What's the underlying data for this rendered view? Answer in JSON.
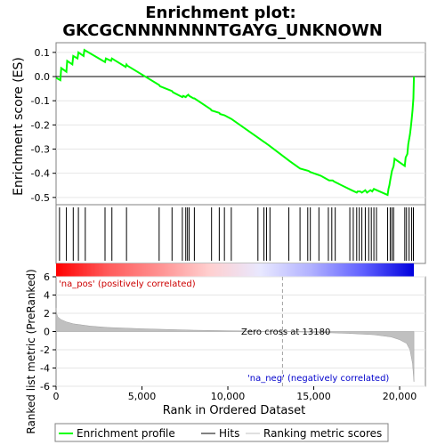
{
  "chart_data": {
    "type": "line",
    "title_line1": "Enrichment plot:",
    "title_line2": "GKCGCNNNNNNNTGAYG_UNKNOWN",
    "es_panel": {
      "ylabel": "Enrichment score (ES)",
      "ylim": [
        -0.53,
        0.14
      ],
      "yticks": [
        0.1,
        0.0,
        -0.1,
        -0.2,
        -0.3,
        -0.4,
        -0.5
      ],
      "ytick_labels": [
        "0.1",
        "0.0",
        "-0.1",
        "-0.2",
        "-0.3",
        "-0.4",
        "-0.5"
      ],
      "series": [
        {
          "name": "Enrichment profile",
          "color": "#00ff00",
          "x": [
            0,
            250,
            300,
            600,
            650,
            950,
            1000,
            1250,
            1300,
            1600,
            1650,
            2850,
            2900,
            3200,
            3250,
            4050,
            4100,
            4150,
            6000,
            6050,
            6750,
            6800,
            7350,
            7400,
            7550,
            7600,
            7700,
            7750,
            8000,
            8050,
            9000,
            9050,
            9500,
            9550,
            9800,
            10200,
            11800,
            12100,
            12200,
            12300,
            12400,
            13600,
            14200,
            14700,
            14800,
            15400,
            15900,
            16100,
            16200,
            17200,
            17500,
            17550,
            17700,
            17800,
            18000,
            18100,
            18300,
            18400,
            18500,
            19300,
            19350,
            19400,
            19450,
            19500,
            19550,
            19650,
            19700,
            20300,
            20350,
            20450,
            20500,
            20600,
            20650,
            20700,
            20750,
            20800,
            20830
          ],
          "y": [
            -0.005,
            -0.015,
            0.035,
            0.02,
            0.065,
            0.05,
            0.085,
            0.075,
            0.1,
            0.085,
            0.11,
            0.06,
            0.075,
            0.065,
            0.075,
            0.04,
            0.05,
            0.045,
            -0.035,
            -0.04,
            -0.06,
            -0.065,
            -0.085,
            -0.08,
            -0.085,
            -0.08,
            -0.075,
            -0.08,
            -0.09,
            -0.09,
            -0.135,
            -0.14,
            -0.15,
            -0.155,
            -0.16,
            -0.175,
            -0.255,
            -0.27,
            -0.275,
            -0.28,
            -0.285,
            -0.35,
            -0.38,
            -0.39,
            -0.395,
            -0.41,
            -0.43,
            -0.43,
            -0.435,
            -0.47,
            -0.48,
            -0.475,
            -0.475,
            -0.48,
            -0.47,
            -0.48,
            -0.47,
            -0.475,
            -0.465,
            -0.49,
            -0.465,
            -0.45,
            -0.43,
            -0.41,
            -0.39,
            -0.37,
            -0.34,
            -0.37,
            -0.335,
            -0.32,
            -0.28,
            -0.24,
            -0.21,
            -0.175,
            -0.14,
            -0.09,
            0.0
          ]
        }
      ]
    },
    "hits_panel": {
      "hit_positions": [
        200,
        600,
        1000,
        1300,
        1700,
        2850,
        3250,
        4100,
        6000,
        6750,
        7350,
        7550,
        7650,
        7750,
        8050,
        9050,
        9500,
        9800,
        10200,
        11750,
        12100,
        12250,
        12450,
        13550,
        14200,
        14650,
        14800,
        15300,
        15850,
        16050,
        16250,
        17100,
        17300,
        17500,
        17650,
        17800,
        18000,
        18200,
        18350,
        18500,
        18650,
        19300,
        19450,
        19550,
        19650,
        20300,
        20400,
        20550,
        20700,
        20800
      ],
      "hit_color": "#000000"
    },
    "heat_bar": {
      "gradient_stops": [
        "#ff0000",
        "#ff5a5a",
        "#ff9090",
        "#ffcfcf",
        "#e8e8ff",
        "#b0b0ff",
        "#6060ff",
        "#0000dd"
      ]
    },
    "metric_panel": {
      "ylabel": "Ranked list metric (PreRanked)",
      "ylim": [
        -6,
        6
      ],
      "yticks": [
        6,
        4,
        2,
        0,
        -2,
        -4,
        -6
      ],
      "ytick_labels": [
        "6",
        "4",
        "2",
        "0",
        "-2",
        "-4",
        "-6"
      ],
      "pos_label": "'na_pos' (positively correlated)",
      "neg_label": "'na_neg' (negatively correlated)",
      "zero_cross_label": "Zero cross at 13180",
      "zero_cross_x": 13180,
      "fill_color": "#c0c0c0",
      "profile_x": [
        0,
        30,
        100,
        300,
        600,
        1000,
        2000,
        3000,
        5000,
        8000,
        11000,
        13180,
        15000,
        17000,
        18500,
        19500,
        20000,
        20400,
        20600,
        20750,
        20830
      ],
      "profile_y": [
        2.6,
        2.0,
        1.6,
        1.3,
        1.05,
        0.85,
        0.6,
        0.45,
        0.3,
        0.15,
        0.06,
        0.0,
        -0.08,
        -0.2,
        -0.35,
        -0.6,
        -0.9,
        -1.3,
        -2.0,
        -3.5,
        -5.5
      ]
    },
    "xaxis": {
      "label": "Rank in Ordered Dataset",
      "xlim": [
        0,
        21500
      ],
      "xticks": [
        0,
        5000,
        10000,
        15000,
        20000
      ],
      "xtick_labels": [
        "0",
        "5,000",
        "10,000",
        "15,000",
        "20,000"
      ]
    },
    "legend": {
      "position": "bottom",
      "items": [
        {
          "label": "Enrichment profile",
          "color": "#00ff00"
        },
        {
          "label": "Hits",
          "color": "#000000"
        },
        {
          "label": "Ranking metric scores",
          "color": "#c0c0c0"
        }
      ]
    }
  }
}
